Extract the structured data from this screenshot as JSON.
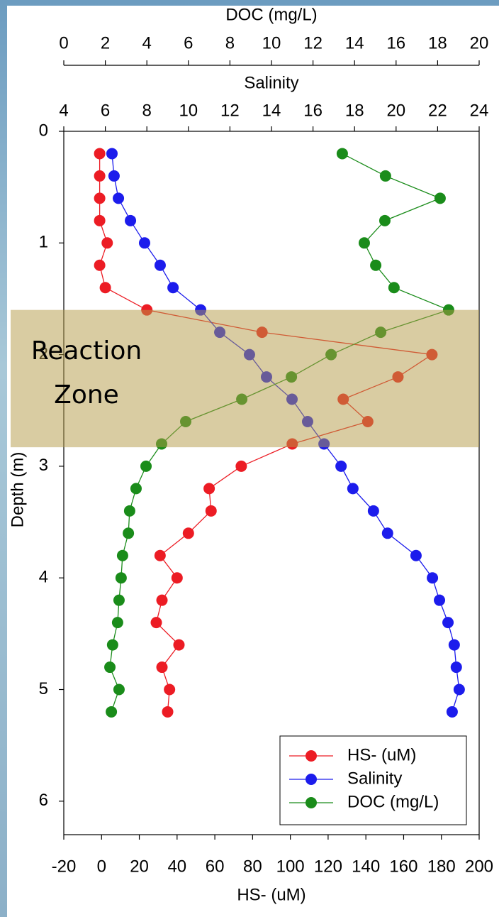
{
  "chart_data": {
    "type": "line",
    "xlabel": "HS- (uM)",
    "x2label": "Salinity",
    "x3label": "DOC (mg/L)",
    "ylabel": "Depth (m)",
    "xlim": [
      -20,
      200
    ],
    "xticks": [
      -20,
      0,
      20,
      40,
      60,
      80,
      100,
      120,
      140,
      160,
      180,
      200
    ],
    "x2lim": [
      4,
      24
    ],
    "x2ticks": [
      4,
      6,
      8,
      10,
      12,
      14,
      16,
      18,
      20,
      22,
      24
    ],
    "x3lim": [
      0,
      20
    ],
    "x3ticks": [
      0,
      2,
      4,
      6,
      8,
      10,
      12,
      14,
      16,
      18,
      20
    ],
    "ylim": [
      0,
      6.3
    ],
    "yticks": [
      0,
      1,
      2,
      3,
      4,
      5,
      6
    ],
    "y_inverted": true,
    "y": [
      0.2,
      0.4,
      0.6,
      0.8,
      1.0,
      1.2,
      1.4,
      1.6,
      1.8,
      2.0,
      2.2,
      2.4,
      2.6,
      2.8,
      3.0,
      3.2,
      3.4,
      3.6,
      3.8,
      4.0,
      4.2,
      4.4,
      4.6,
      4.8,
      5.0,
      5.2
    ],
    "series": [
      {
        "name": "HS- (uM)",
        "color": "#ec1c24",
        "axis": "x",
        "values": [
          -1,
          -1,
          -1,
          -1,
          3,
          -1,
          2,
          24,
          85,
          175,
          157,
          128,
          141,
          101,
          74,
          57,
          58,
          46,
          31,
          40,
          32,
          29,
          41,
          32,
          36,
          35
        ]
      },
      {
        "name": "Salinity",
        "color": "#1c1cec",
        "axis": "x2",
        "values": [
          6.32,
          6.42,
          6.63,
          7.21,
          7.89,
          8.64,
          9.26,
          10.59,
          11.51,
          12.94,
          13.76,
          14.99,
          15.74,
          16.53,
          17.35,
          17.92,
          18.91,
          19.59,
          20.96,
          21.75,
          22.09,
          22.5,
          22.8,
          22.9,
          23.04,
          22.7
        ]
      },
      {
        "name": "DOC (mg/L)",
        "color": "#1a8c1a",
        "axis": "x3",
        "values": [
          13.41,
          15.49,
          18.12,
          15.46,
          14.47,
          15.02,
          15.9,
          18.53,
          15.26,
          12.87,
          10.96,
          8.57,
          5.87,
          4.71,
          3.96,
          3.48,
          3.17,
          3.11,
          2.83,
          2.76,
          2.66,
          2.59,
          2.35,
          2.22,
          2.66,
          2.29
        ]
      }
    ],
    "zone": {
      "label": [
        "Reaction",
        "Zone"
      ],
      "range": [
        1.6,
        2.83
      ],
      "color": "#b49a46"
    },
    "legend": "lower right"
  }
}
